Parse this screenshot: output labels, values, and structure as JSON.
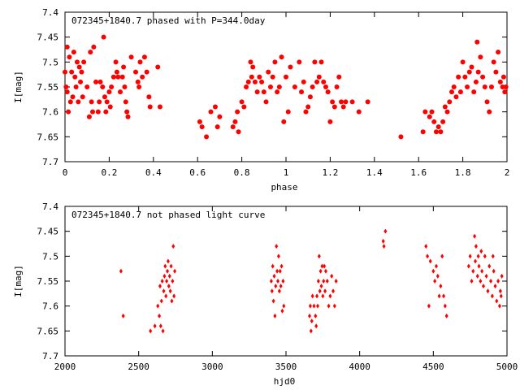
{
  "chart_data": [
    {
      "type": "scatter",
      "title": "072345+1840.7 phased with P=344.0day",
      "xlabel": "phase",
      "ylabel": "I[mag]",
      "xlim": [
        0,
        2
      ],
      "ylim": [
        7.4,
        7.7
      ],
      "y_inverted": true,
      "grid": false,
      "marker_color": "#ff0000",
      "marker": "filled-circle",
      "x_ticks": [
        0,
        0.2,
        0.4,
        0.6,
        0.8,
        1,
        1.2,
        1.4,
        1.6,
        1.8,
        2
      ],
      "x_tick_labels": [
        "0",
        "0.2",
        "0.4",
        "0.6",
        "0.8",
        "1",
        "1.2",
        "1.4",
        "1.6",
        "1.8",
        "2"
      ],
      "y_ticks": [
        7.4,
        7.45,
        7.5,
        7.55,
        7.6,
        7.65,
        7.7
      ],
      "y_tick_labels": [
        "7.4",
        "7.45",
        "7.5",
        "7.55",
        "7.6",
        "7.65",
        "7.7"
      ],
      "points": [
        [
          0.0,
          7.52
        ],
        [
          0.005,
          7.55
        ],
        [
          0.01,
          7.47
        ],
        [
          0.01,
          7.56
        ],
        [
          0.015,
          7.6
        ],
        [
          0.02,
          7.49
        ],
        [
          0.025,
          7.58
        ],
        [
          0.03,
          7.52
        ],
        [
          0.035,
          7.57
        ],
        [
          0.04,
          7.48
        ],
        [
          0.045,
          7.53
        ],
        [
          0.05,
          7.55
        ],
        [
          0.055,
          7.5
        ],
        [
          0.06,
          7.58
        ],
        [
          0.065,
          7.51
        ],
        [
          0.07,
          7.54
        ],
        [
          0.075,
          7.52
        ],
        [
          0.08,
          7.57
        ],
        [
          0.085,
          7.5
        ],
        [
          0.1,
          7.55
        ],
        [
          0.11,
          7.61
        ],
        [
          0.115,
          7.48
        ],
        [
          0.12,
          7.58
        ],
        [
          0.125,
          7.6
        ],
        [
          0.13,
          7.47
        ],
        [
          0.14,
          7.54
        ],
        [
          0.15,
          7.6
        ],
        [
          0.155,
          7.58
        ],
        [
          0.16,
          7.54
        ],
        [
          0.17,
          7.55
        ],
        [
          0.175,
          7.45
        ],
        [
          0.18,
          7.57
        ],
        [
          0.185,
          7.6
        ],
        [
          0.19,
          7.58
        ],
        [
          0.2,
          7.56
        ],
        [
          0.205,
          7.59
        ],
        [
          0.21,
          7.55
        ],
        [
          0.22,
          7.53
        ],
        [
          0.23,
          7.5
        ],
        [
          0.235,
          7.52
        ],
        [
          0.24,
          7.53
        ],
        [
          0.25,
          7.56
        ],
        [
          0.26,
          7.53
        ],
        [
          0.265,
          7.51
        ],
        [
          0.27,
          7.55
        ],
        [
          0.275,
          7.58
        ],
        [
          0.28,
          7.6
        ],
        [
          0.285,
          7.61
        ],
        [
          0.3,
          7.49
        ],
        [
          0.32,
          7.52
        ],
        [
          0.33,
          7.54
        ],
        [
          0.335,
          7.55
        ],
        [
          0.34,
          7.5
        ],
        [
          0.35,
          7.53
        ],
        [
          0.36,
          7.49
        ],
        [
          0.37,
          7.52
        ],
        [
          0.38,
          7.57
        ],
        [
          0.385,
          7.59
        ],
        [
          0.42,
          7.51
        ],
        [
          0.43,
          7.59
        ],
        [
          0.61,
          7.62
        ],
        [
          0.62,
          7.63
        ],
        [
          0.64,
          7.65
        ],
        [
          0.66,
          7.6
        ],
        [
          0.68,
          7.59
        ],
        [
          0.69,
          7.63
        ],
        [
          0.7,
          7.61
        ],
        [
          0.76,
          7.63
        ],
        [
          0.77,
          7.62
        ],
        [
          0.78,
          7.6
        ],
        [
          0.785,
          7.64
        ],
        [
          0.8,
          7.58
        ],
        [
          0.81,
          7.59
        ],
        [
          0.82,
          7.55
        ],
        [
          0.83,
          7.54
        ],
        [
          0.84,
          7.5
        ],
        [
          0.845,
          7.53
        ],
        [
          0.85,
          7.51
        ],
        [
          0.86,
          7.54
        ],
        [
          0.87,
          7.56
        ],
        [
          0.88,
          7.53
        ],
        [
          0.89,
          7.54
        ],
        [
          0.9,
          7.56
        ],
        [
          0.91,
          7.58
        ],
        [
          0.92,
          7.52
        ],
        [
          0.93,
          7.55
        ],
        [
          0.94,
          7.53
        ],
        [
          0.95,
          7.5
        ],
        [
          0.96,
          7.56
        ],
        [
          0.97,
          7.55
        ],
        [
          0.98,
          7.49
        ],
        [
          0.99,
          7.62
        ],
        [
          1.0,
          7.53
        ],
        [
          1.01,
          7.6
        ],
        [
          1.02,
          7.51
        ],
        [
          1.04,
          7.55
        ],
        [
          1.06,
          7.5
        ],
        [
          1.07,
          7.56
        ],
        [
          1.08,
          7.54
        ],
        [
          1.09,
          7.6
        ],
        [
          1.1,
          7.59
        ],
        [
          1.11,
          7.57
        ],
        [
          1.12,
          7.55
        ],
        [
          1.13,
          7.5
        ],
        [
          1.14,
          7.54
        ],
        [
          1.15,
          7.53
        ],
        [
          1.16,
          7.5
        ],
        [
          1.17,
          7.54
        ],
        [
          1.18,
          7.55
        ],
        [
          1.19,
          7.56
        ],
        [
          1.2,
          7.62
        ],
        [
          1.21,
          7.58
        ],
        [
          1.22,
          7.59
        ],
        [
          1.23,
          7.55
        ],
        [
          1.24,
          7.53
        ],
        [
          1.25,
          7.58
        ],
        [
          1.26,
          7.59
        ],
        [
          1.27,
          7.58
        ],
        [
          1.3,
          7.58
        ],
        [
          1.33,
          7.6
        ],
        [
          1.37,
          7.58
        ],
        [
          1.52,
          7.65
        ],
        [
          1.62,
          7.64
        ],
        [
          1.63,
          7.6
        ],
        [
          1.65,
          7.61
        ],
        [
          1.66,
          7.6
        ],
        [
          1.67,
          7.62
        ],
        [
          1.68,
          7.64
        ],
        [
          1.69,
          7.63
        ],
        [
          1.7,
          7.64
        ],
        [
          1.71,
          7.62
        ],
        [
          1.72,
          7.59
        ],
        [
          1.73,
          7.6
        ],
        [
          1.74,
          7.58
        ],
        [
          1.75,
          7.56
        ],
        [
          1.76,
          7.55
        ],
        [
          1.77,
          7.57
        ],
        [
          1.78,
          7.53
        ],
        [
          1.79,
          7.56
        ],
        [
          1.8,
          7.5
        ],
        [
          1.81,
          7.53
        ],
        [
          1.82,
          7.55
        ],
        [
          1.83,
          7.52
        ],
        [
          1.84,
          7.51
        ],
        [
          1.85,
          7.56
        ],
        [
          1.86,
          7.54
        ],
        [
          1.865,
          7.46
        ],
        [
          1.87,
          7.52
        ],
        [
          1.88,
          7.49
        ],
        [
          1.89,
          7.53
        ],
        [
          1.9,
          7.55
        ],
        [
          1.91,
          7.58
        ],
        [
          1.92,
          7.6
        ],
        [
          1.93,
          7.55
        ],
        [
          1.94,
          7.5
        ],
        [
          1.95,
          7.52
        ],
        [
          1.96,
          7.48
        ],
        [
          1.97,
          7.54
        ],
        [
          1.98,
          7.55
        ],
        [
          1.99,
          7.56
        ],
        [
          1.985,
          7.53
        ],
        [
          1.995,
          7.55
        ]
      ]
    },
    {
      "type": "scatter",
      "title": "072345+1840.7 not phased light curve",
      "xlabel": "hjd0",
      "ylabel": "I[mag]",
      "xlim": [
        2000,
        5000
      ],
      "ylim": [
        7.4,
        7.7
      ],
      "y_inverted": true,
      "grid": false,
      "marker_color": "#ff0000",
      "marker": "diamond",
      "x_ticks": [
        2000,
        2500,
        3000,
        3500,
        4000,
        4500,
        5000
      ],
      "x_tick_labels": [
        "2000",
        "2500",
        "3000",
        "3500",
        "4000",
        "4500",
        "5000"
      ],
      "y_ticks": [
        7.4,
        7.45,
        7.5,
        7.55,
        7.6,
        7.65,
        7.7
      ],
      "y_tick_labels": [
        "7.4",
        "7.45",
        "7.5",
        "7.55",
        "7.6",
        "7.65",
        "7.7"
      ],
      "points": [
        [
          2380,
          7.53
        ],
        [
          2395,
          7.62
        ],
        [
          2580,
          7.65
        ],
        [
          2610,
          7.64
        ],
        [
          2630,
          7.6
        ],
        [
          2640,
          7.62
        ],
        [
          2645,
          7.56
        ],
        [
          2650,
          7.64
        ],
        [
          2655,
          7.59
        ],
        [
          2660,
          7.55
        ],
        [
          2665,
          7.65
        ],
        [
          2670,
          7.57
        ],
        [
          2675,
          7.54
        ],
        [
          2680,
          7.52
        ],
        [
          2685,
          7.58
        ],
        [
          2690,
          7.55
        ],
        [
          2695,
          7.53
        ],
        [
          2700,
          7.51
        ],
        [
          2705,
          7.56
        ],
        [
          2710,
          7.54
        ],
        [
          2715,
          7.57
        ],
        [
          2720,
          7.52
        ],
        [
          2725,
          7.59
        ],
        [
          2730,
          7.55
        ],
        [
          2735,
          7.48
        ],
        [
          2740,
          7.58
        ],
        [
          2745,
          7.53
        ],
        [
          3400,
          7.55
        ],
        [
          3405,
          7.57
        ],
        [
          3410,
          7.52
        ],
        [
          3415,
          7.59
        ],
        [
          3420,
          7.54
        ],
        [
          3425,
          7.62
        ],
        [
          3430,
          7.56
        ],
        [
          3435,
          7.48
        ],
        [
          3440,
          7.53
        ],
        [
          3445,
          7.55
        ],
        [
          3450,
          7.5
        ],
        [
          3455,
          7.57
        ],
        [
          3460,
          7.53
        ],
        [
          3465,
          7.56
        ],
        [
          3470,
          7.52
        ],
        [
          3475,
          7.61
        ],
        [
          3480,
          7.55
        ],
        [
          3485,
          7.6
        ],
        [
          3660,
          7.62
        ],
        [
          3665,
          7.6
        ],
        [
          3670,
          7.65
        ],
        [
          3675,
          7.63
        ],
        [
          3680,
          7.58
        ],
        [
          3690,
          7.6
        ],
        [
          3700,
          7.62
        ],
        [
          3705,
          7.64
        ],
        [
          3710,
          7.58
        ],
        [
          3715,
          7.6
        ],
        [
          3720,
          7.55
        ],
        [
          3725,
          7.5
        ],
        [
          3730,
          7.57
        ],
        [
          3735,
          7.53
        ],
        [
          3740,
          7.56
        ],
        [
          3745,
          7.52
        ],
        [
          3750,
          7.58
        ],
        [
          3755,
          7.55
        ],
        [
          3760,
          7.52
        ],
        [
          3765,
          7.57
        ],
        [
          3770,
          7.53
        ],
        [
          3780,
          7.55
        ],
        [
          3790,
          7.6
        ],
        [
          3800,
          7.58
        ],
        [
          3810,
          7.54
        ],
        [
          3820,
          7.57
        ],
        [
          3830,
          7.6
        ],
        [
          3840,
          7.55
        ],
        [
          4160,
          7.47
        ],
        [
          4165,
          7.48
        ],
        [
          4175,
          7.45
        ],
        [
          4450,
          7.48
        ],
        [
          4460,
          7.5
        ],
        [
          4470,
          7.6
        ],
        [
          4480,
          7.51
        ],
        [
          4500,
          7.53
        ],
        [
          4510,
          7.55
        ],
        [
          4520,
          7.52
        ],
        [
          4530,
          7.54
        ],
        [
          4540,
          7.58
        ],
        [
          4550,
          7.56
        ],
        [
          4560,
          7.5
        ],
        [
          4570,
          7.58
        ],
        [
          4580,
          7.6
        ],
        [
          4590,
          7.62
        ],
        [
          4740,
          7.52
        ],
        [
          4750,
          7.5
        ],
        [
          4760,
          7.55
        ],
        [
          4770,
          7.53
        ],
        [
          4780,
          7.46
        ],
        [
          4785,
          7.51
        ],
        [
          4790,
          7.48
        ],
        [
          4800,
          7.54
        ],
        [
          4805,
          7.5
        ],
        [
          4810,
          7.52
        ],
        [
          4820,
          7.55
        ],
        [
          4825,
          7.49
        ],
        [
          4830,
          7.53
        ],
        [
          4840,
          7.56
        ],
        [
          4850,
          7.5
        ],
        [
          4860,
          7.54
        ],
        [
          4870,
          7.57
        ],
        [
          4880,
          7.52
        ],
        [
          4890,
          7.55
        ],
        [
          4900,
          7.58
        ],
        [
          4905,
          7.5
        ],
        [
          4910,
          7.53
        ],
        [
          4920,
          7.56
        ],
        [
          4930,
          7.59
        ],
        [
          4940,
          7.55
        ],
        [
          4950,
          7.6
        ],
        [
          4955,
          7.57
        ],
        [
          4960,
          7.58
        ],
        [
          4965,
          7.54
        ]
      ]
    }
  ]
}
